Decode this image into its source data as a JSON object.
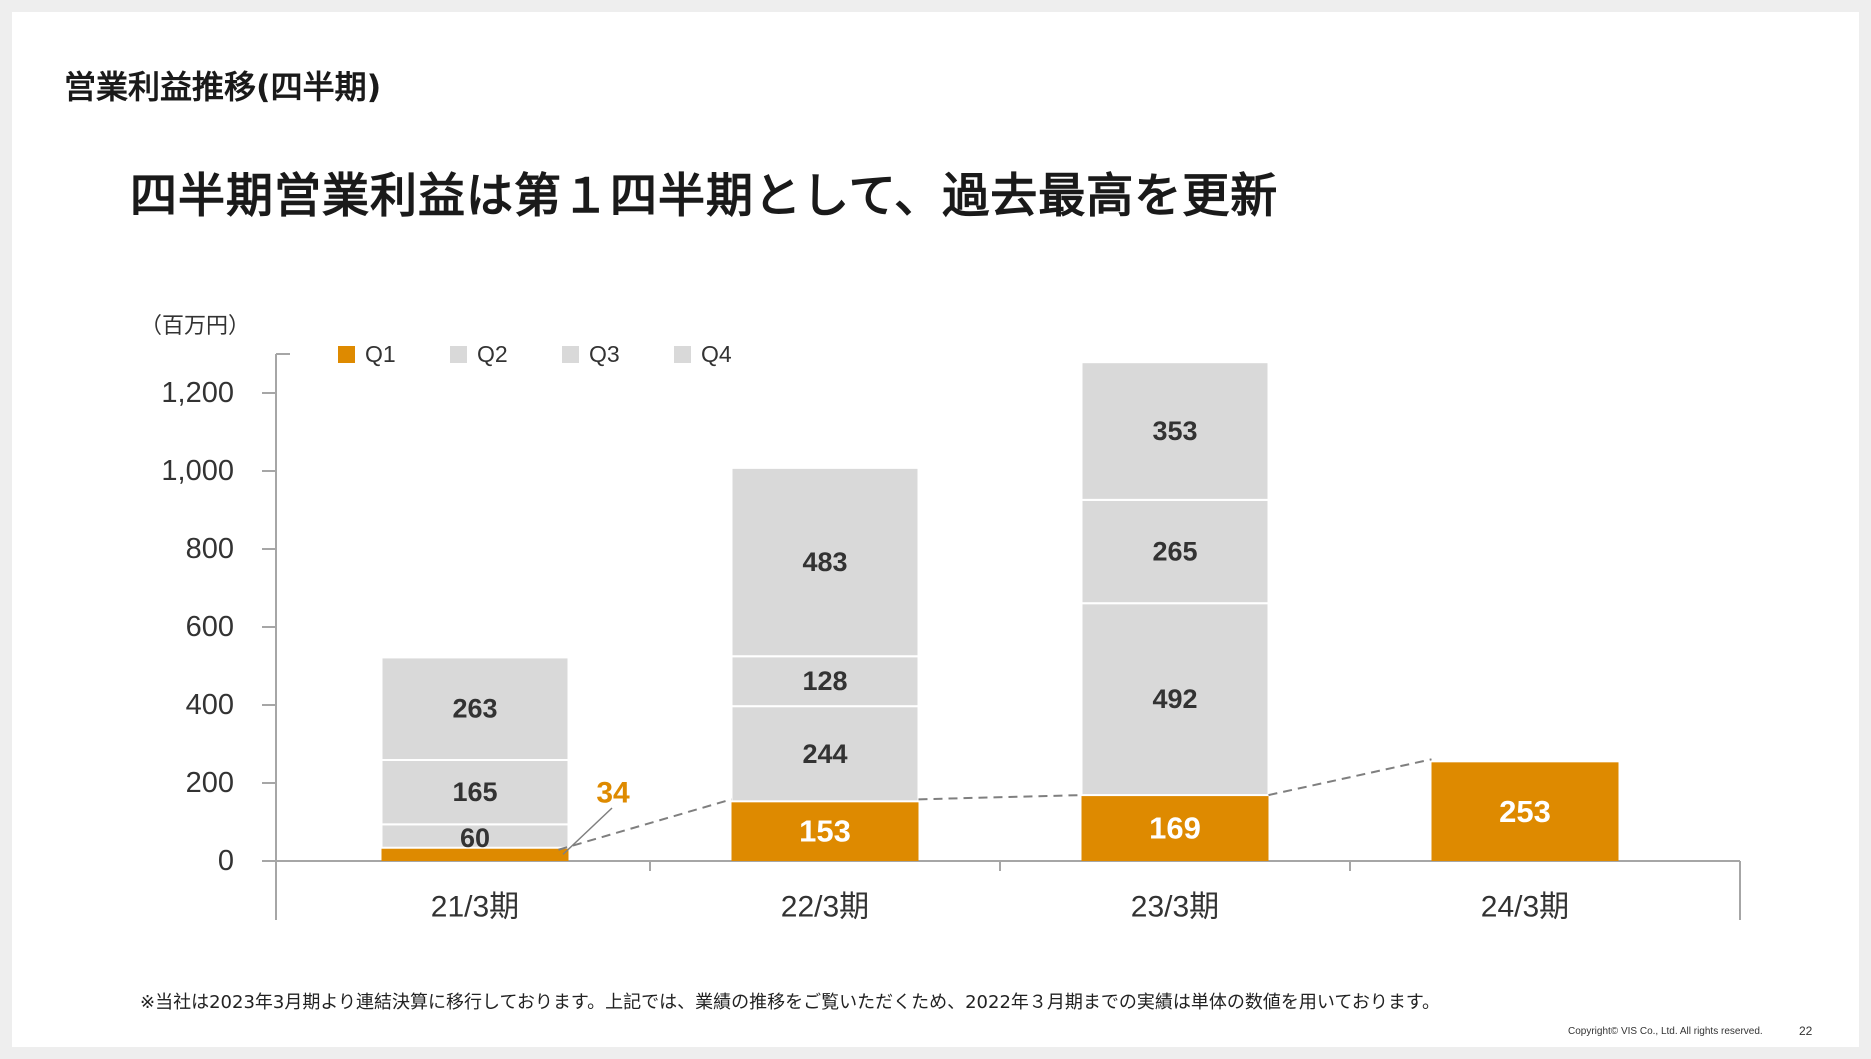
{
  "header": {
    "section_title": "営業利益推移(四半期)",
    "headline": "四半期営業利益は第１四半期として、過去最高を更新"
  },
  "footer": {
    "note": "※当社は2023年3月期より連結決算に移行しております。上記では、業績の推移をご覧いただくため、2022年３月期までの実績は単体の数値を用いております。",
    "copyright": "Copyright© VIS Co., Ltd. All rights reserved.",
    "page_number": "22"
  },
  "colors": {
    "q1": "#DE8A00",
    "others": "#D9D9D9",
    "axis": "#A6A6A6",
    "connector": "#7F7F7F",
    "label_dark": "#333333",
    "label_light": "#FFFFFF"
  },
  "chart_data": {
    "type": "bar",
    "stacked": true,
    "unit_label": "（百万円）",
    "categories": [
      "21/3期",
      "22/3期",
      "23/3期",
      "24/3期"
    ],
    "series": [
      {
        "name": "Q1",
        "values": [
          34,
          153,
          169,
          253
        ]
      },
      {
        "name": "Q2",
        "values": [
          60,
          244,
          492,
          null
        ]
      },
      {
        "name": "Q3",
        "values": [
          165,
          128,
          265,
          null
        ]
      },
      {
        "name": "Q4",
        "values": [
          263,
          483,
          353,
          null
        ]
      }
    ],
    "y_ticks": [
      "0",
      "200",
      "400",
      "600",
      "800",
      "1,000",
      "1,200"
    ],
    "ylim": [
      0,
      1300
    ],
    "legend_position": "top-left",
    "q1_connector": "dashed",
    "grid": false
  }
}
